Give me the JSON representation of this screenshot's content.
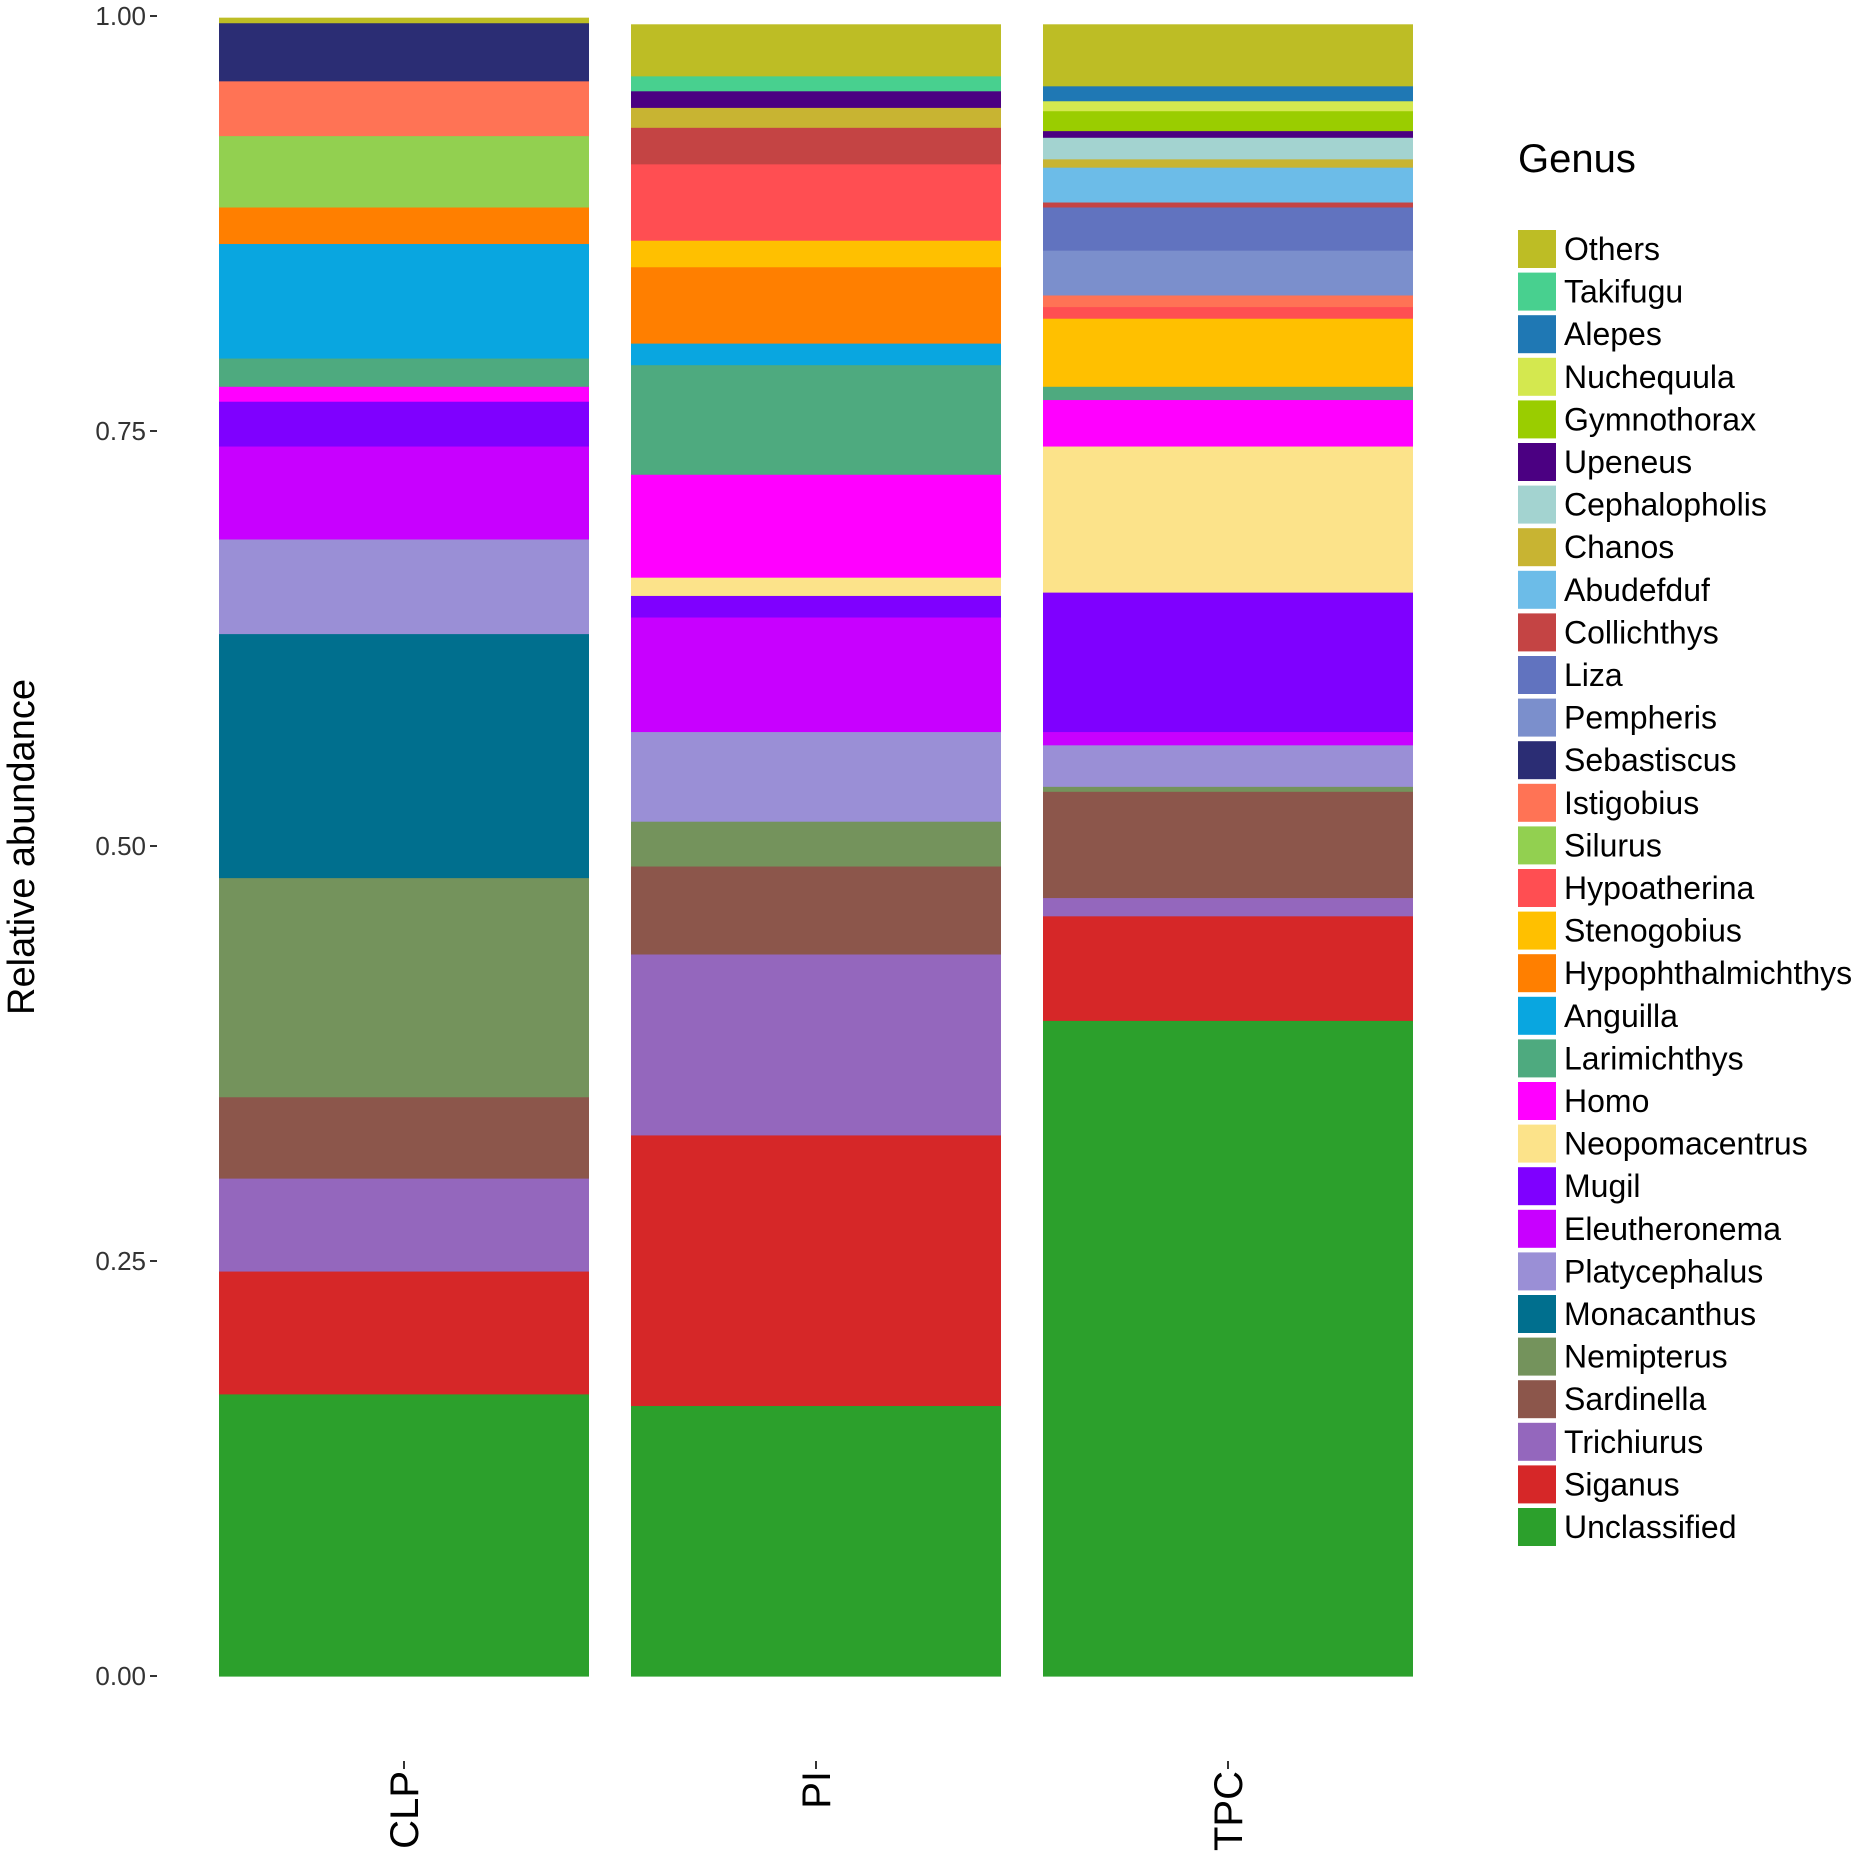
{
  "chart_data": {
    "type": "bar",
    "stacked": true,
    "ylabel": "Relative abundance",
    "xlabel": "",
    "ylim": [
      0,
      1
    ],
    "yticks": [
      "0.00",
      "0.25",
      "0.50",
      "0.75",
      "1.00"
    ],
    "categories": [
      "CLP",
      "PI",
      "TPC"
    ],
    "legend_title": "Genus",
    "legend_position": "right",
    "series": [
      {
        "name": "Unclassified",
        "color": "#2CA02C",
        "values": [
          0.17,
          0.163,
          0.395
        ]
      },
      {
        "name": "Siganus",
        "color": "#D62728",
        "values": [
          0.074,
          0.163,
          0.063
        ]
      },
      {
        "name": "Trichiurus",
        "color": "#9467BD",
        "values": [
          0.056,
          0.109,
          0.011
        ]
      },
      {
        "name": "Sardinella",
        "color": "#8C564B",
        "values": [
          0.049,
          0.053,
          0.064
        ]
      },
      {
        "name": "Nemipterus",
        "color": "#74935C",
        "values": [
          0.132,
          0.027,
          0.003
        ]
      },
      {
        "name": "Monacanthus",
        "color": "#006F8E",
        "values": [
          0.147,
          0.0,
          0.0
        ]
      },
      {
        "name": "Platycephalus",
        "color": "#9A8FD6",
        "values": [
          0.057,
          0.054,
          0.025
        ]
      },
      {
        "name": "Eleutheronema",
        "color": "#C800FF",
        "values": [
          0.056,
          0.069,
          0.008
        ]
      },
      {
        "name": "Mugil",
        "color": "#7F00FF",
        "values": [
          0.027,
          0.013,
          0.084
        ]
      },
      {
        "name": "Neopomacentrus",
        "color": "#FCE38A",
        "values": [
          0.0,
          0.011,
          0.088
        ]
      },
      {
        "name": "Homo",
        "color": "#FF00FF",
        "values": [
          0.009,
          0.062,
          0.028
        ]
      },
      {
        "name": "Larimichthys",
        "color": "#4EAA7F",
        "values": [
          0.017,
          0.066,
          0.008
        ]
      },
      {
        "name": "Anguilla",
        "color": "#09A6E0",
        "values": [
          0.069,
          0.013,
          0.0
        ]
      },
      {
        "name": "Hypophthalmichthys",
        "color": "#FF7F00",
        "values": [
          0.022,
          0.046,
          0.0
        ]
      },
      {
        "name": "Stenogobius",
        "color": "#FFC000",
        "values": [
          0.0,
          0.016,
          0.041
        ]
      },
      {
        "name": "Hypoatherina",
        "color": "#FF4E52",
        "values": [
          0.0,
          0.046,
          0.007
        ]
      },
      {
        "name": "Silurus",
        "color": "#92D050",
        "values": [
          0.043,
          0.0,
          0.0
        ]
      },
      {
        "name": "Istigobius",
        "color": "#FF7355",
        "values": [
          0.033,
          0.0,
          0.007
        ]
      },
      {
        "name": "Sebastiscus",
        "color": "#2B2D74",
        "values": [
          0.035,
          0.0,
          0.0
        ]
      },
      {
        "name": "Pempheris",
        "color": "#7B8FCC",
        "values": [
          0.0,
          0.0,
          0.027
        ]
      },
      {
        "name": "Liza",
        "color": "#6173BF",
        "values": [
          0.0,
          0.0,
          0.026
        ]
      },
      {
        "name": "Collichthys",
        "color": "#C44444",
        "values": [
          0.0,
          0.022,
          0.003
        ]
      },
      {
        "name": "Abudefduf",
        "color": "#6CBCE8",
        "values": [
          0.0,
          0.0,
          0.021
        ]
      },
      {
        "name": "Chanos",
        "color": "#C8B432",
        "values": [
          0.0,
          0.012,
          0.005
        ]
      },
      {
        "name": "Cephalopholis",
        "color": "#A3D3D0",
        "values": [
          0.0,
          0.0,
          0.013
        ]
      },
      {
        "name": "Upeneus",
        "color": "#4B0082",
        "values": [
          0.0,
          0.01,
          0.004
        ]
      },
      {
        "name": "Gymnothorax",
        "color": "#9ACD00",
        "values": [
          0.0,
          0.0,
          0.012
        ]
      },
      {
        "name": "Nuchequula",
        "color": "#D4E84F",
        "values": [
          0.0,
          0.0,
          0.006
        ]
      },
      {
        "name": "Alepes",
        "color": "#1F78B4",
        "values": [
          0.0,
          0.0,
          0.009
        ]
      },
      {
        "name": "Takifugu",
        "color": "#48D08F",
        "values": [
          0.0,
          0.009,
          0.0
        ]
      },
      {
        "name": "Others",
        "color": "#BDBD25",
        "values": [
          0.003,
          0.031,
          0.037
        ]
      }
    ]
  }
}
